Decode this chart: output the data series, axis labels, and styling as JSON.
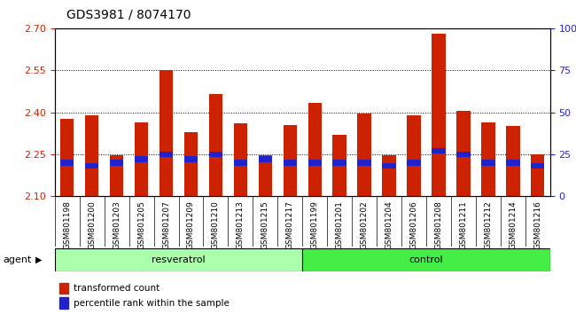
{
  "title": "GDS3981 / 8074170",
  "categories": [
    "GSM801198",
    "GSM801200",
    "GSM801203",
    "GSM801205",
    "GSM801207",
    "GSM801209",
    "GSM801210",
    "GSM801213",
    "GSM801215",
    "GSM801217",
    "GSM801199",
    "GSM801201",
    "GSM801202",
    "GSM801204",
    "GSM801206",
    "GSM801208",
    "GSM801211",
    "GSM801212",
    "GSM801214",
    "GSM801216"
  ],
  "red_values": [
    2.375,
    2.39,
    2.245,
    2.365,
    2.55,
    2.33,
    2.465,
    2.36,
    2.245,
    2.355,
    2.435,
    2.32,
    2.395,
    2.245,
    2.39,
    2.68,
    2.405,
    2.365,
    2.35,
    2.25
  ],
  "blue_pct": [
    20,
    18,
    20,
    22,
    25,
    22,
    25,
    20,
    22,
    20,
    20,
    20,
    20,
    18,
    20,
    27,
    25,
    20,
    20,
    18
  ],
  "resveratrol_count": 10,
  "control_count": 10,
  "ylim": [
    2.1,
    2.7
  ],
  "y2lim": [
    0,
    100
  ],
  "yticks": [
    2.1,
    2.25,
    2.4,
    2.55,
    2.7
  ],
  "y2ticks": [
    0,
    25,
    50,
    75,
    100
  ],
  "bar_color": "#cc2200",
  "blue_color": "#2222cc",
  "bg_plot": "#ffffff",
  "bg_xticklabel": "#c8c8c8",
  "bg_resveratrol": "#aaffaa",
  "bg_control": "#44ee44",
  "agent_label": "agent",
  "resveratrol_label": "resveratrol",
  "control_label": "control",
  "legend1": "transformed count",
  "legend2": "percentile rank within the sample",
  "bar_width": 0.55
}
